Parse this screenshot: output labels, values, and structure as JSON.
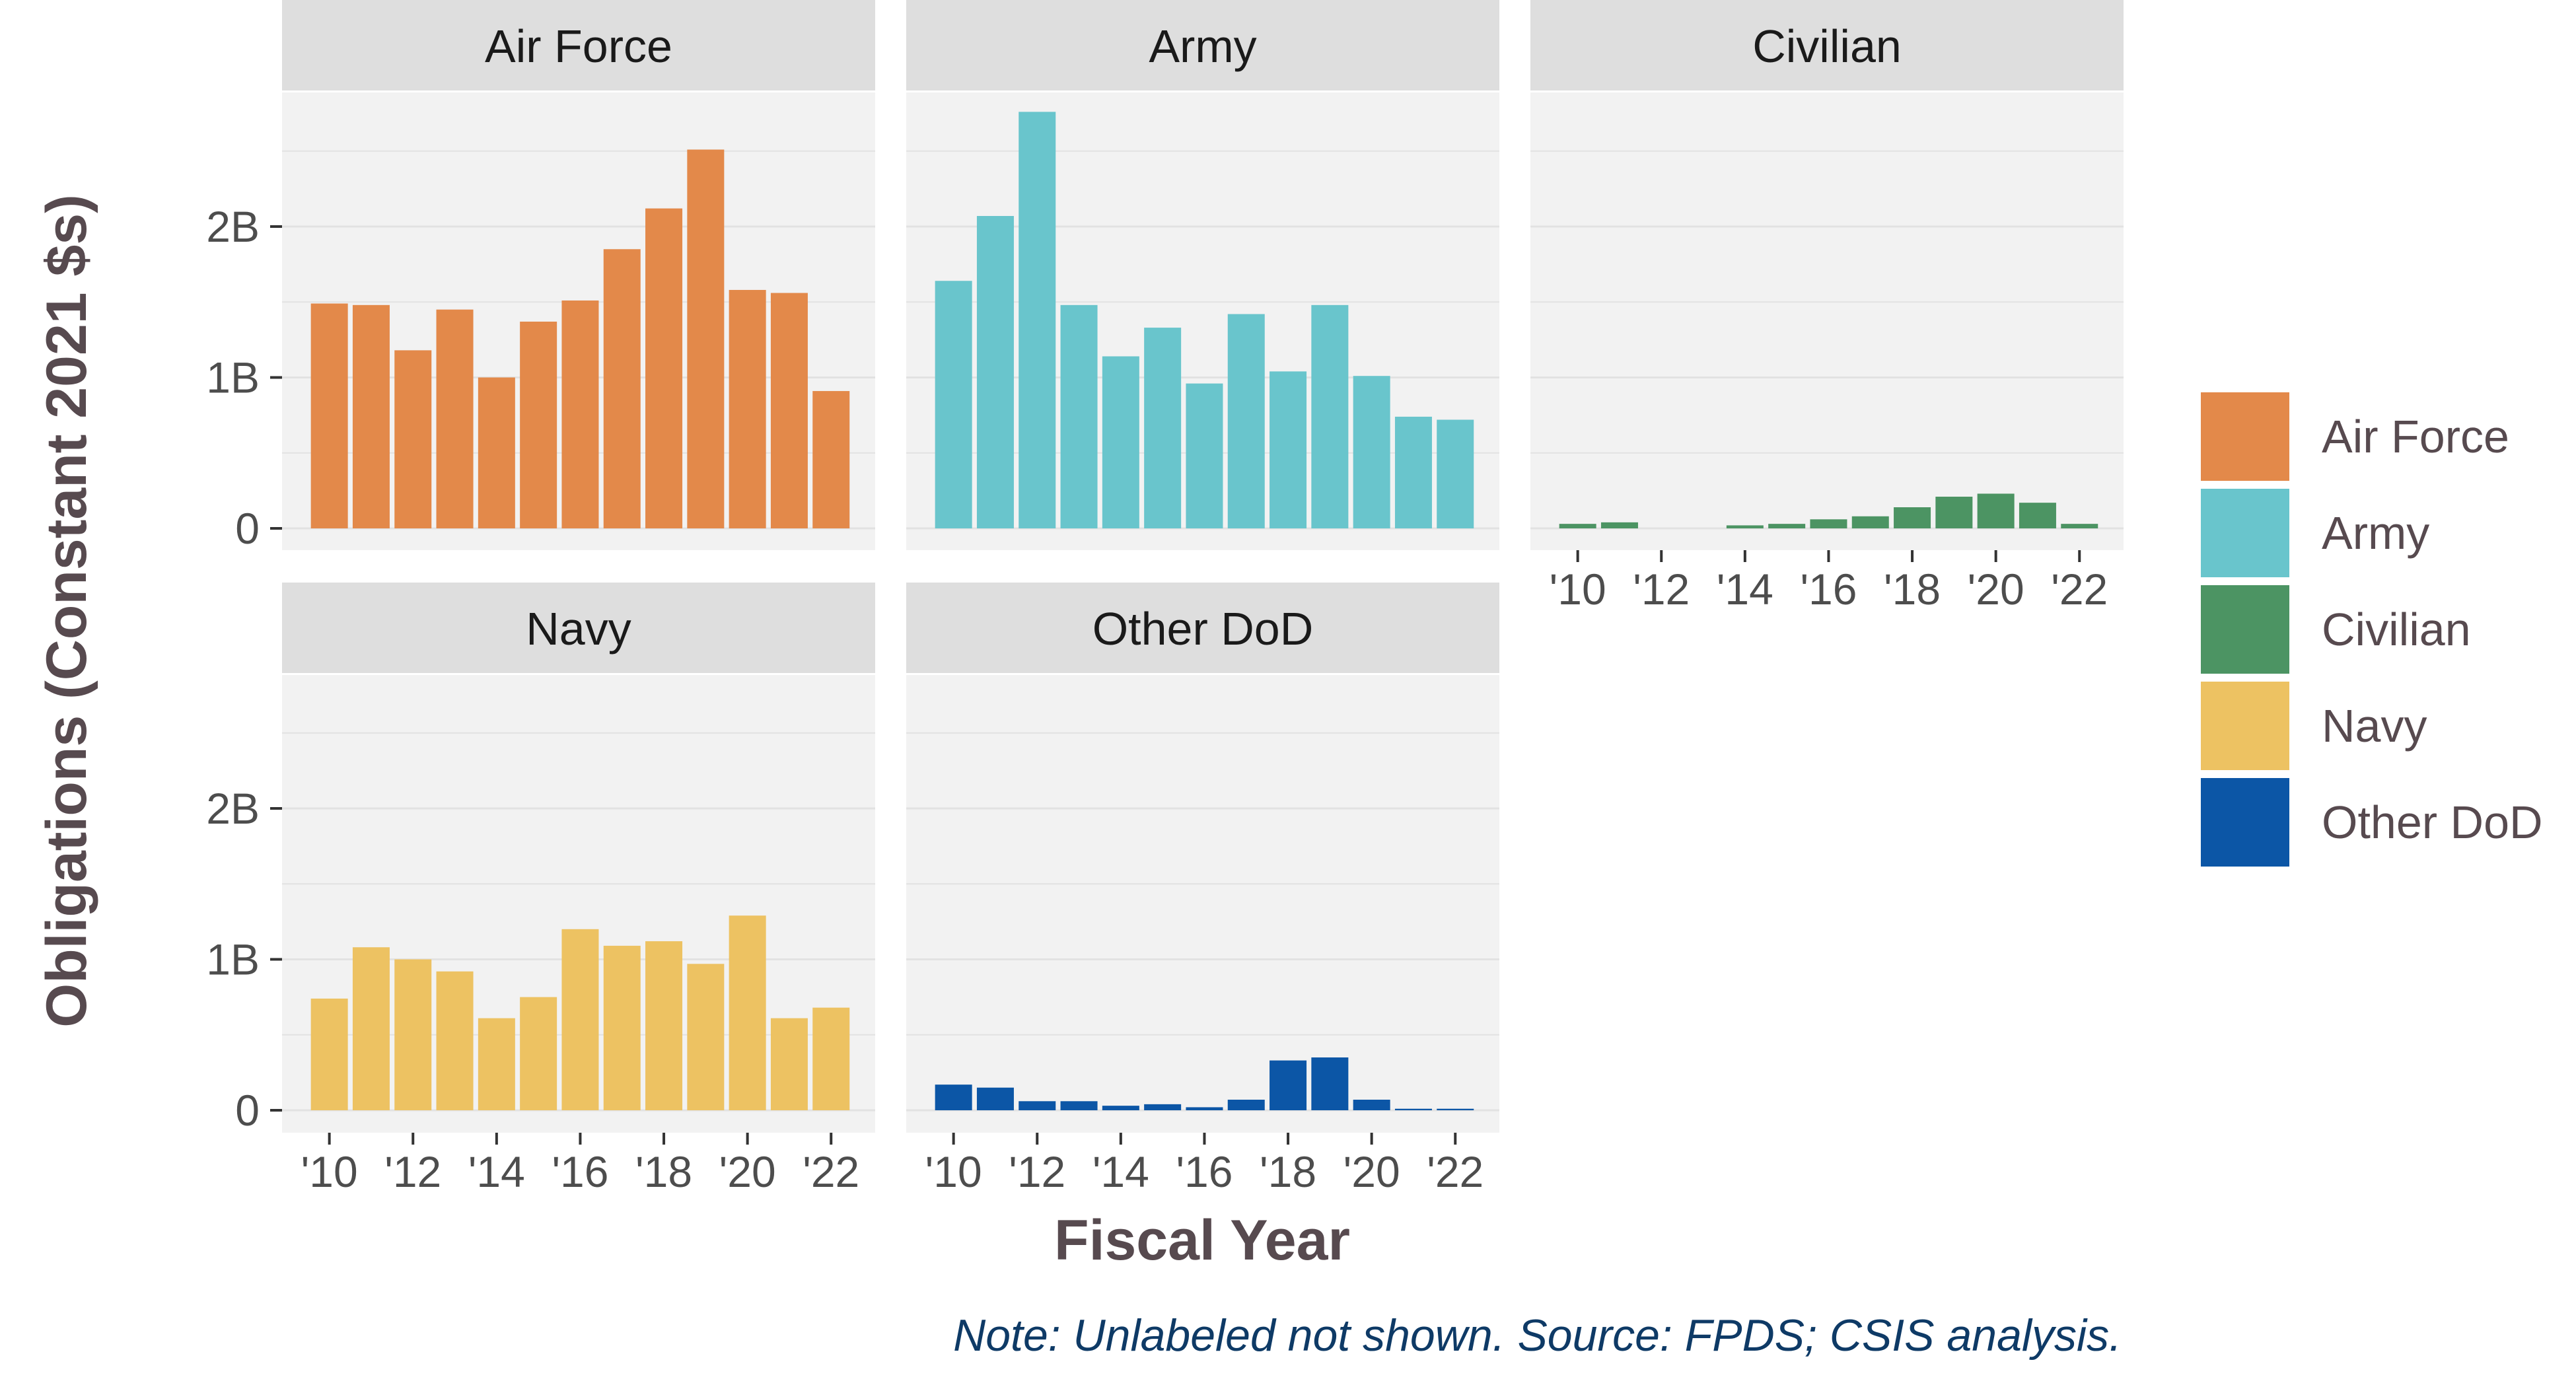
{
  "chart_data": {
    "type": "bar",
    "layout": "faceted",
    "x": [
      "'10",
      "'11",
      "'12",
      "'13",
      "'14",
      "'15",
      "'16",
      "'17",
      "'18",
      "'19",
      "'20",
      "'21",
      "'22"
    ],
    "x_tick_labels": [
      "'10",
      "'12",
      "'14",
      "'16",
      "'18",
      "'20",
      "'22"
    ],
    "y_tick_labels": [
      "0",
      "1B",
      "2B"
    ],
    "y_ticks": [
      0,
      1,
      2
    ],
    "ylim": [
      0,
      2.9
    ],
    "unit": "B",
    "xlabel": "Fiscal Year",
    "ylabel": "Obligations (Constant 2021 $s)",
    "note": "Note: Unlabeled not shown. Source: FPDS; CSIS analysis.",
    "grid": true,
    "legend_position": "right",
    "series": [
      {
        "name": "Air Force",
        "color": "#E3894A",
        "values": [
          1.49,
          1.48,
          1.18,
          1.45,
          1.0,
          1.37,
          1.51,
          1.85,
          2.12,
          2.51,
          1.58,
          1.56,
          0.91
        ]
      },
      {
        "name": "Army",
        "color": "#69C5CC",
        "values": [
          1.64,
          2.07,
          2.76,
          1.48,
          1.14,
          1.33,
          0.96,
          1.42,
          1.04,
          1.48,
          1.01,
          0.74,
          0.72
        ]
      },
      {
        "name": "Civilian",
        "color": "#4C9463",
        "values": [
          0.03,
          0.04,
          0.0,
          0.0,
          0.02,
          0.03,
          0.06,
          0.08,
          0.14,
          0.21,
          0.23,
          0.17,
          0.03
        ]
      },
      {
        "name": "Navy",
        "color": "#EDC262",
        "values": [
          0.74,
          1.08,
          1.0,
          0.92,
          0.61,
          0.75,
          1.2,
          1.09,
          1.12,
          0.97,
          1.29,
          0.61,
          0.68
        ]
      },
      {
        "name": "Other DoD",
        "color": "#0C56A6",
        "values": [
          0.17,
          0.15,
          0.06,
          0.06,
          0.03,
          0.04,
          0.02,
          0.07,
          0.33,
          0.35,
          0.07,
          0.01,
          0.01
        ]
      }
    ]
  }
}
